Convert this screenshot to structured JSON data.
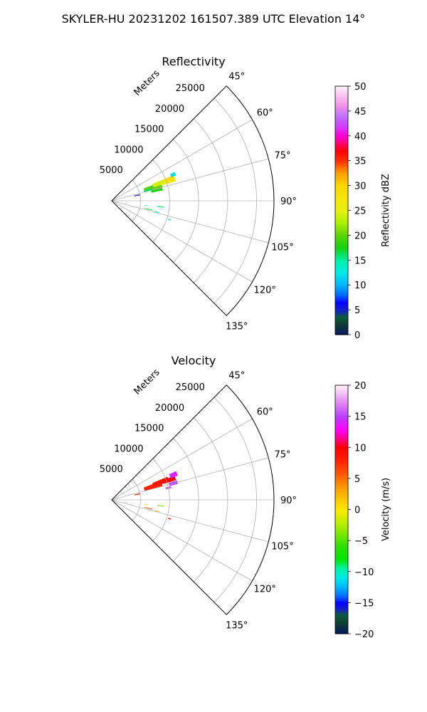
{
  "figure": {
    "suptitle": "SKYLER-HU  20231202  161507.389 UTC Elevation 14°"
  },
  "chart_data": [
    {
      "type": "polar-sector",
      "title": "Reflectivity",
      "radial_axis_label": "Meters",
      "radial_ticks": [
        5000,
        10000,
        15000,
        20000,
        25000
      ],
      "radial_tick_labels": [
        "5000",
        "10000",
        "15000",
        "20000",
        "25000"
      ],
      "rlim": [
        0,
        28000
      ],
      "theta_range_deg": [
        45,
        135
      ],
      "angle_ticks": [
        45,
        60,
        75,
        90,
        105,
        120,
        135
      ],
      "angle_tick_labels": [
        "45°",
        "60°",
        "75°",
        "90°",
        "105°",
        "120°",
        "135°"
      ],
      "grid": true,
      "colorbar": {
        "label": "Reflectivity dBZ",
        "min": 0,
        "max": 50,
        "ticks": [
          0,
          5,
          10,
          15,
          20,
          25,
          30,
          35,
          40,
          45,
          50
        ],
        "tick_labels": [
          "0",
          "5",
          "10",
          "15",
          "20",
          "25",
          "30",
          "35",
          "40",
          "45",
          "50"
        ],
        "stops": [
          {
            "v": 0,
            "c": "#0a1760"
          },
          {
            "v": 2,
            "c": "#0e3a35"
          },
          {
            "v": 3.5,
            "c": "#0b5b3a"
          },
          {
            "v": 5,
            "c": "#1520c8"
          },
          {
            "v": 6.5,
            "c": "#0000ff"
          },
          {
            "v": 8,
            "c": "#0068ff"
          },
          {
            "v": 10,
            "c": "#00b4ff"
          },
          {
            "v": 12.5,
            "c": "#00e8e8"
          },
          {
            "v": 15,
            "c": "#00f0a8"
          },
          {
            "v": 17.5,
            "c": "#14d014"
          },
          {
            "v": 20,
            "c": "#5ad000"
          },
          {
            "v": 22.5,
            "c": "#a8f000"
          },
          {
            "v": 25,
            "c": "#e8f010"
          },
          {
            "v": 30,
            "c": "#ffd800"
          },
          {
            "v": 32.5,
            "c": "#ffa000"
          },
          {
            "v": 35,
            "c": "#ff3000"
          },
          {
            "v": 37,
            "c": "#ff0000"
          },
          {
            "v": 38.5,
            "c": "#ff0070"
          },
          {
            "v": 40,
            "c": "#ff00d8"
          },
          {
            "v": 42,
            "c": "#d040ff"
          },
          {
            "v": 44,
            "c": "#c070ff"
          },
          {
            "v": 46,
            "c": "#f090e8"
          },
          {
            "v": 48,
            "c": "#f8c0f0"
          },
          {
            "v": 50,
            "c": "#fff0fa"
          }
        ]
      },
      "echoes": [
        {
          "range": 7500,
          "azimuth": 72,
          "dr": 3200,
          "daz": 6,
          "value": 20
        },
        {
          "range": 9000,
          "azimuth": 70,
          "dr": 2800,
          "daz": 5,
          "value": 24
        },
        {
          "range": 10500,
          "azimuth": 71,
          "dr": 2200,
          "daz": 4,
          "value": 27
        },
        {
          "range": 10800,
          "azimuth": 69,
          "dr": 1500,
          "daz": 3,
          "value": 30
        },
        {
          "range": 11500,
          "azimuth": 67,
          "dr": 900,
          "daz": 3,
          "value": 12
        },
        {
          "range": 8000,
          "azimuth": 77,
          "dr": 2000,
          "daz": 3,
          "value": 18
        },
        {
          "range": 6500,
          "azimuth": 74,
          "dr": 1500,
          "daz": 3,
          "value": 16
        },
        {
          "range": 4500,
          "azimuth": 78,
          "dr": 1000,
          "daz": 2,
          "value": 6
        },
        {
          "range": 8500,
          "azimuth": 97,
          "dr": 1200,
          "daz": 1,
          "value": 16
        },
        {
          "range": 6000,
          "azimuth": 98,
          "dr": 600,
          "daz": 1,
          "value": 14
        },
        {
          "range": 6500,
          "azimuth": 103,
          "dr": 1500,
          "daz": 1,
          "value": 17
        },
        {
          "range": 8000,
          "azimuth": 104,
          "dr": 800,
          "daz": 1,
          "value": 15
        },
        {
          "range": 10500,
          "azimuth": 108,
          "dr": 500,
          "daz": 1,
          "value": 12
        },
        {
          "range": 2500,
          "azimuth": 100,
          "dr": 400,
          "daz": 1,
          "value": 18
        }
      ]
    },
    {
      "type": "polar-sector",
      "title": "Velocity",
      "radial_axis_label": "Meters",
      "radial_ticks": [
        5000,
        10000,
        15000,
        20000,
        25000
      ],
      "radial_tick_labels": [
        "5000",
        "10000",
        "15000",
        "20000",
        "25000"
      ],
      "rlim": [
        0,
        28000
      ],
      "theta_range_deg": [
        45,
        135
      ],
      "angle_ticks": [
        45,
        60,
        75,
        90,
        105,
        120,
        135
      ],
      "angle_tick_labels": [
        "45°",
        "60°",
        "75°",
        "90°",
        "105°",
        "120°",
        "135°"
      ],
      "grid": true,
      "colorbar": {
        "label": "Velocity (m/s)",
        "min": -20,
        "max": 20,
        "ticks": [
          -20,
          -15,
          -10,
          -5,
          0,
          5,
          10,
          15,
          20
        ],
        "tick_labels": [
          "−20",
          "−15",
          "−10",
          "−5",
          "0",
          "5",
          "10",
          "15",
          "20"
        ],
        "stops": [
          {
            "v": -20,
            "c": "#0a1760"
          },
          {
            "v": -18.5,
            "c": "#0e3a35"
          },
          {
            "v": -17,
            "c": "#0b5b3a"
          },
          {
            "v": -16,
            "c": "#1520c8"
          },
          {
            "v": -15,
            "c": "#0000ff"
          },
          {
            "v": -14,
            "c": "#0068ff"
          },
          {
            "v": -12.5,
            "c": "#00b4ff"
          },
          {
            "v": -11,
            "c": "#00e8e8"
          },
          {
            "v": -9.5,
            "c": "#00f0a8"
          },
          {
            "v": -8,
            "c": "#00e800"
          },
          {
            "v": -6,
            "c": "#28e000"
          },
          {
            "v": -4,
            "c": "#78e800"
          },
          {
            "v": -2,
            "c": "#c0f000"
          },
          {
            "v": 0,
            "c": "#ffe800"
          },
          {
            "v": 2,
            "c": "#ffc000"
          },
          {
            "v": 4,
            "c": "#ff9000"
          },
          {
            "v": 6,
            "c": "#ff5000"
          },
          {
            "v": 8,
            "c": "#ff2000"
          },
          {
            "v": 10,
            "c": "#ff0000"
          },
          {
            "v": 11.5,
            "c": "#ff0090"
          },
          {
            "v": 13,
            "c": "#ff00ff"
          },
          {
            "v": 15,
            "c": "#b840ff"
          },
          {
            "v": 17,
            "c": "#e080f0"
          },
          {
            "v": 20,
            "c": "#fff0fa"
          }
        ]
      },
      "echoes": [
        {
          "range": 7500,
          "azimuth": 72,
          "dr": 3200,
          "daz": 6,
          "value": 8
        },
        {
          "range": 9000,
          "azimuth": 70,
          "dr": 2800,
          "daz": 5,
          "value": 9
        },
        {
          "range": 10500,
          "azimuth": 71,
          "dr": 2200,
          "daz": 4,
          "value": 10
        },
        {
          "range": 11500,
          "azimuth": 68,
          "dr": 1300,
          "daz": 4,
          "value": 14
        },
        {
          "range": 11000,
          "azimuth": 75,
          "dr": 1500,
          "daz": 3,
          "value": 15
        },
        {
          "range": 10000,
          "azimuth": 78,
          "dr": 1000,
          "daz": 2,
          "value": 16
        },
        {
          "range": 4500,
          "azimuth": 78,
          "dr": 1000,
          "daz": 2,
          "value": 9
        },
        {
          "range": 8500,
          "azimuth": 97,
          "dr": 1200,
          "daz": 1,
          "value": -4
        },
        {
          "range": 6000,
          "azimuth": 98,
          "dr": 600,
          "daz": 1,
          "value": 2
        },
        {
          "range": 6500,
          "azimuth": 103,
          "dr": 1500,
          "daz": 1,
          "value": 7
        },
        {
          "range": 8000,
          "azimuth": 104,
          "dr": 800,
          "daz": 1,
          "value": 3
        },
        {
          "range": 10500,
          "azimuth": 108,
          "dr": 500,
          "daz": 1,
          "value": 9
        },
        {
          "range": 2500,
          "azimuth": 100,
          "dr": 400,
          "daz": 1,
          "value": 11
        }
      ]
    }
  ]
}
